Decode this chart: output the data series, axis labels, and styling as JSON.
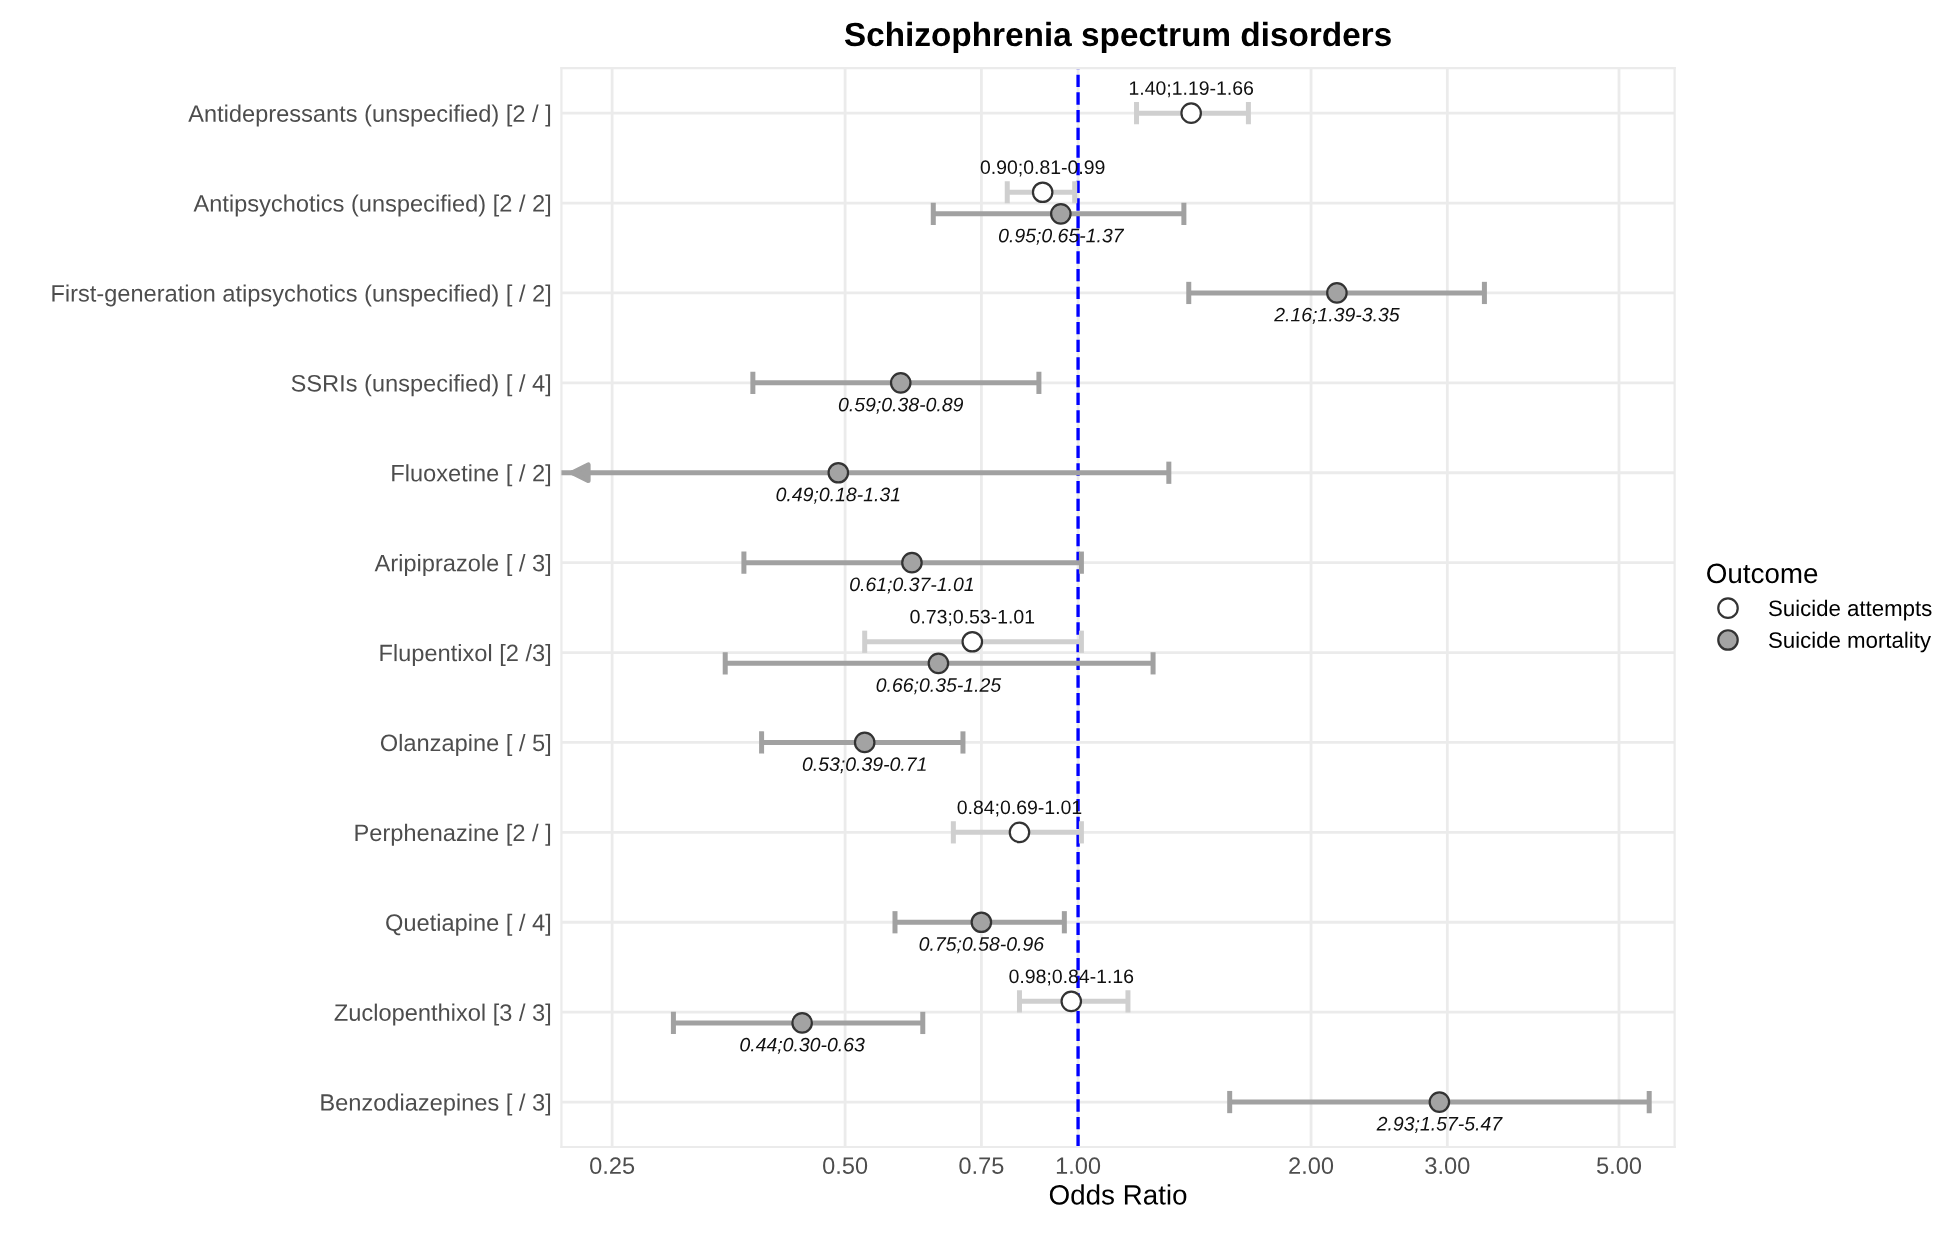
{
  "chart_data": {
    "type": "scatter",
    "orientation": "horizontal",
    "title": "Schizophrenia spectrum disorders",
    "xlabel": "Odds Ratio",
    "legend_title": "Outcome",
    "legend": "right",
    "log": "x",
    "grid": true,
    "marker": "circle",
    "categories": [
      "Antidepressants (unspecified) [2 / ]",
      "Antipsychotics (unspecified) [2 / 2]",
      "First-generation atipsychotics (unspecified) [ / 2]",
      "SSRIs (unspecified) [ / 4]",
      "Fluoxetine [ / 2]",
      "Aripiprazole [ / 3]",
      "Flupentixol [2 /3]",
      "Olanzapine [ / 5]",
      "Perphenazine [2 / ]",
      "Quetiapine [ / 4]",
      "Zuclopenthixol [3 / 3]",
      "Benzodiazepines [ / 3]"
    ],
    "xlim": [
      0.215,
      5.9
    ],
    "xticks": [
      {
        "value": 0.25,
        "label": "0.25"
      },
      {
        "value": 0.5,
        "label": "0.50"
      },
      {
        "value": 0.75,
        "label": "0.75"
      },
      {
        "value": 1.0,
        "label": "1.00"
      },
      {
        "value": 2.0,
        "label": "2.00"
      },
      {
        "value": 3.0,
        "label": "3.00"
      },
      {
        "value": 5.0,
        "label": "5.00"
      }
    ],
    "ref_lines": [
      {
        "axis": "x",
        "value": 1.0,
        "color": "#0000ff",
        "line_style": "dashed"
      }
    ],
    "series": [
      {
        "name": "Suicide attempts",
        "color": "#ffffff",
        "values": [
          1.4,
          0.9,
          null,
          null,
          null,
          null,
          0.73,
          null,
          0.84,
          null,
          0.98,
          null
        ],
        "errors": [
          [
            1.19,
            1.66
          ],
          [
            0.81,
            0.99
          ],
          null,
          null,
          null,
          null,
          [
            0.53,
            1.01
          ],
          null,
          [
            0.69,
            1.01
          ],
          null,
          [
            0.84,
            1.16
          ],
          null
        ],
        "value_labels": [
          "1.40;1.19-1.66",
          "0.90;0.81-0.99",
          null,
          null,
          null,
          null,
          "0.73;0.53-1.01",
          null,
          "0.84;0.69-1.01",
          null,
          "0.98;0.84-1.16",
          null
        ]
      },
      {
        "name": "Suicide mortality",
        "color": "#a3a3a3",
        "values": [
          null,
          0.95,
          2.16,
          0.59,
          0.49,
          0.61,
          0.66,
          0.53,
          null,
          0.75,
          0.44,
          2.93
        ],
        "errors": [
          null,
          [
            0.65,
            1.37
          ],
          [
            1.39,
            3.35
          ],
          [
            0.38,
            0.89
          ],
          [
            0.18,
            1.31
          ],
          [
            0.37,
            1.01
          ],
          [
            0.35,
            1.25
          ],
          [
            0.39,
            0.71
          ],
          null,
          [
            0.58,
            0.96
          ],
          [
            0.3,
            0.63
          ],
          [
            1.57,
            5.47
          ]
        ],
        "value_labels": [
          null,
          "0.95;0.65-1.37",
          "2.16;1.39-3.35",
          "0.59;0.38-0.89",
          "0.49;0.18-1.31",
          "0.61;0.37-1.01",
          "0.66;0.35-1.25",
          "0.53;0.39-0.71",
          null,
          "0.75;0.58-0.96",
          "0.44;0.30-0.63",
          "2.93;1.57-5.47"
        ]
      }
    ]
  }
}
